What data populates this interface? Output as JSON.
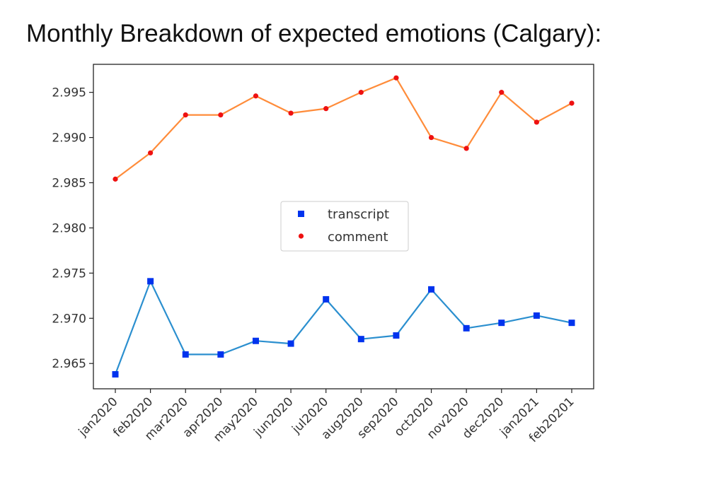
{
  "title": "Monthly Breakdown of expected emotions (Calgary):",
  "chart_data": {
    "type": "line",
    "categories": [
      "jan2020",
      "feb2020",
      "mar2020",
      "apr2020",
      "may2020",
      "jun2020",
      "jul2020",
      "aug2020",
      "sep2020",
      "oct2020",
      "nov2020",
      "dec2020",
      "jan2021",
      "feb20201"
    ],
    "ylim": [
      2.9622,
      2.9981
    ],
    "yticks": [
      "2.965",
      "2.970",
      "2.975",
      "2.980",
      "2.985",
      "2.990",
      "2.995"
    ],
    "grid": false,
    "legend_position": "center",
    "series": [
      {
        "name": "transcript",
        "values": [
          2.9638,
          2.9741,
          2.966,
          2.966,
          2.9675,
          2.9672,
          2.9721,
          2.9677,
          2.9681,
          2.9732,
          2.9689,
          2.9695,
          2.9703,
          2.9695
        ],
        "line_color": "#2b8fcf",
        "marker_color": "#0033ee",
        "marker": "square"
      },
      {
        "name": "comment",
        "values": [
          2.9854,
          2.9883,
          2.9925,
          2.9925,
          2.9946,
          2.9927,
          2.9932,
          2.995,
          2.9966,
          2.99,
          2.9888,
          2.995,
          2.9917,
          2.9938
        ],
        "line_color": "#ff8c3a",
        "marker_color": "#ee1111",
        "marker": "circle"
      }
    ]
  }
}
